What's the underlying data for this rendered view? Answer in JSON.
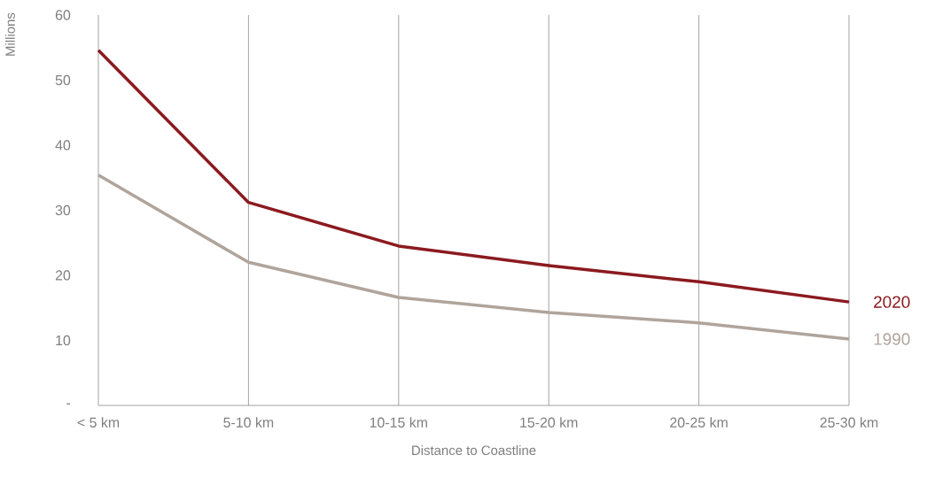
{
  "chart_data": {
    "type": "line",
    "xlabel": "Distance to Coastline",
    "ylabel": "Millions",
    "categories": [
      "< 5 km",
      "5-10 km",
      "10-15 km",
      "15-20 km",
      "20-25 km",
      "25-30 km"
    ],
    "series": [
      {
        "name": "2020",
        "color": "#8b1a1f",
        "values": [
          54.6,
          31.2,
          24.5,
          21.5,
          19.0,
          15.9
        ]
      },
      {
        "name": "1990",
        "color": "#b0a49b",
        "values": [
          35.4,
          22.0,
          16.6,
          14.3,
          12.7,
          10.2
        ]
      }
    ],
    "ylim": [
      0,
      60
    ],
    "yticks": [
      {
        "value": 0,
        "label": "-"
      },
      10,
      20,
      30,
      40,
      50,
      60
    ],
    "grid": "x",
    "marker": "none",
    "line_style": "solid"
  }
}
